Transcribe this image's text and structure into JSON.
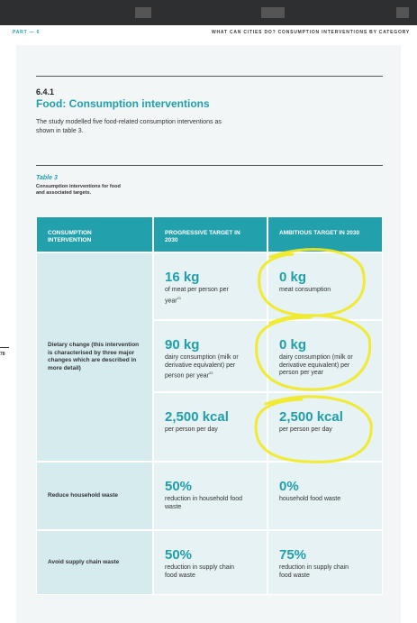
{
  "header": {
    "part": "PART — 6",
    "section": "WHAT CAN CITIES DO? CONSUMPTION INTERVENTIONS BY CATEGORY"
  },
  "heading": {
    "number": "6.4.1",
    "title": "Food: Consumption interventions"
  },
  "intro": "The study modelled five food-related consumption interventions as shown in table 3.",
  "page_number": "78",
  "table": {
    "label": "Table 3",
    "caption": "Consumption interventions for food and associated targets.",
    "columns": [
      "CONSUMPTION INTERVENTION",
      "PROGRESSIVE TARGET IN 2030",
      "AMBITIOUS TARGET IN 2030"
    ],
    "rows": [
      {
        "intervention": "Dietary change (this intervention is characterised by three major changes which are described in more detail)",
        "targets": [
          {
            "progressive": {
              "amount": "16 kg",
              "detail": "of meat per person per year",
              "ref": "21"
            },
            "ambitious": {
              "amount": "0 kg",
              "detail": "meat consumption"
            }
          },
          {
            "progressive": {
              "amount": "90 kg",
              "detail": "dairy consumption (milk or derivative equivalent) per person per year",
              "ref": "22"
            },
            "ambitious": {
              "amount": "0 kg",
              "detail": "dairy consumption (milk or derivative equivalent) per person per year"
            }
          },
          {
            "progressive": {
              "amount": "2,500 kcal",
              "detail": "per person per day"
            },
            "ambitious": {
              "amount": "2,500 kcal",
              "detail": "per person per day"
            }
          }
        ]
      },
      {
        "intervention": "Reduce household waste",
        "targets": [
          {
            "progressive": {
              "amount": "50%",
              "detail": "reduction in household food waste"
            },
            "ambitious": {
              "amount": "0%",
              "detail": "household food waste"
            }
          }
        ]
      },
      {
        "intervention": "Avoid supply chain waste",
        "targets": [
          {
            "progressive": {
              "amount": "50%",
              "detail": "reduction in supply chain food waste"
            },
            "ambitious": {
              "amount": "75%",
              "detail": "reduction in supply chain food waste"
            }
          }
        ]
      }
    ]
  }
}
